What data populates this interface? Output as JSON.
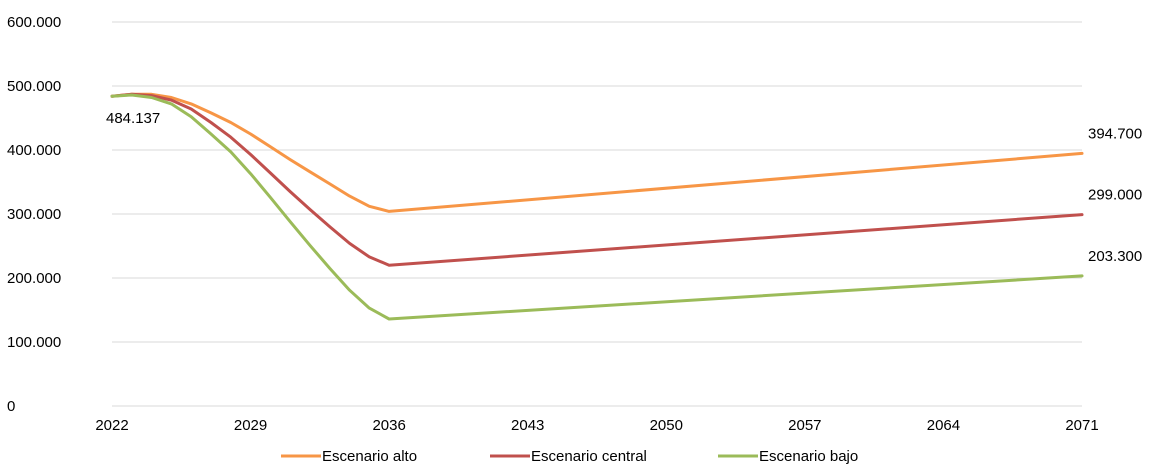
{
  "chart_data": {
    "type": "line",
    "title": "",
    "xlabel": "",
    "ylabel": "",
    "xlim": [
      2022,
      2071
    ],
    "ylim": [
      0,
      600000
    ],
    "grid": true,
    "legend_position": "bottom",
    "x_ticks": [
      "2022",
      "2029",
      "2036",
      "2043",
      "2050",
      "2057",
      "2064",
      "2071"
    ],
    "y_ticks": [
      "0",
      "100.000",
      "200.000",
      "300.000",
      "400.000",
      "500.000",
      "600.000"
    ],
    "series": [
      {
        "name": "Escenario alto",
        "color": "#f79646",
        "x": [
          2022,
          2023,
          2024,
          2025,
          2026,
          2027,
          2028,
          2029,
          2030,
          2031,
          2032,
          2033,
          2034,
          2035,
          2036,
          2071
        ],
        "y": [
          484137,
          487000,
          487000,
          482000,
          472000,
          458000,
          443000,
          425000,
          405000,
          385000,
          366000,
          347000,
          328000,
          312000,
          304000,
          394700
        ]
      },
      {
        "name": "Escenario central",
        "color": "#c0504d",
        "x": [
          2022,
          2023,
          2024,
          2025,
          2026,
          2027,
          2028,
          2029,
          2030,
          2031,
          2032,
          2033,
          2034,
          2035,
          2036,
          2071
        ],
        "y": [
          484137,
          487000,
          485000,
          478000,
          464000,
          443000,
          420000,
          393000,
          364000,
          335000,
          307000,
          280000,
          254000,
          233000,
          220000,
          299000
        ]
      },
      {
        "name": "Escenario bajo",
        "color": "#9bbb59",
        "x": [
          2022,
          2023,
          2024,
          2025,
          2026,
          2027,
          2028,
          2029,
          2030,
          2031,
          2032,
          2033,
          2034,
          2035,
          2036,
          2071
        ],
        "y": [
          484137,
          486000,
          482000,
          472000,
          452000,
          425000,
          397000,
          363000,
          326000,
          288000,
          251000,
          215000,
          181000,
          153000,
          136000,
          203300
        ]
      }
    ],
    "annotations": [
      {
        "text": "484.137",
        "x": 2022,
        "y": 484137
      },
      {
        "text": "394.700",
        "x": 2071,
        "y": 394700
      },
      {
        "text": "299.000",
        "x": 2071,
        "y": 299000
      },
      {
        "text": "203.300",
        "x": 2071,
        "y": 203300
      }
    ]
  }
}
